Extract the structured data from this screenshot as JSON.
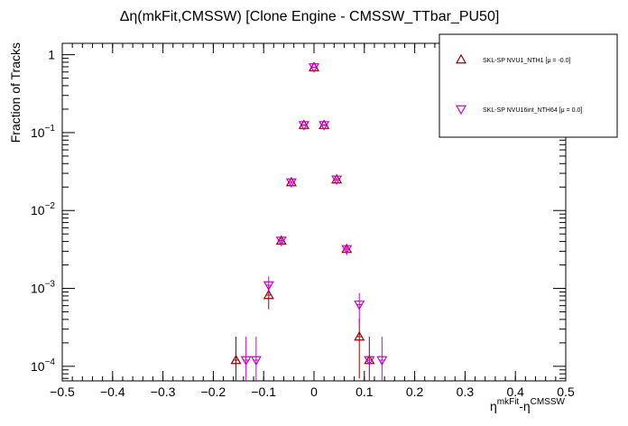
{
  "chart_data": {
    "type": "scatter",
    "title": "Δη(mkFit,CMSSW) [Clone Engine - CMSSW_TTbar_PU50]",
    "ylabel": "Fraction of Tracks",
    "xlabel_base": "η",
    "xlabel_sup1": "mkFit",
    "xlabel_mid": "-η",
    "xlabel_sup2": "CMSSW",
    "xlim": [
      -0.5,
      0.5
    ],
    "ylim": [
      6.5e-05,
      1.4
    ],
    "yscale": "log",
    "xticks": [
      -0.5,
      -0.4,
      -0.3,
      -0.2,
      -0.1,
      0,
      0.1,
      0.2,
      0.3,
      0.4,
      0.5
    ],
    "xtick_labels": [
      "−0.5",
      "−0.4",
      "−0.3",
      "−0.2",
      "−0.1",
      "0",
      "0.1",
      "0.2",
      "0.3",
      "0.4",
      "0.5"
    ],
    "yticks": [
      0.0001,
      0.001,
      0.01,
      0.1,
      1
    ],
    "ytick_base": [
      "10",
      "10",
      "10",
      "10",
      "1"
    ],
    "ytick_exp": [
      "−4",
      "−3",
      "−2",
      "−1",
      ""
    ],
    "legend_position": "top-right",
    "series": [
      {
        "name": "SKL-SP NVU1_NTH1 [μ = -0.0]",
        "color": "#990000",
        "marker": "triangle-up",
        "x": [
          -0.155,
          -0.09,
          -0.065,
          -0.045,
          -0.02,
          0,
          0.02,
          0.045,
          0.065,
          0.09,
          0.11
        ],
        "y": [
          0.00012,
          0.00082,
          0.0041,
          0.023,
          0.125,
          0.69,
          0.125,
          0.025,
          0.0032,
          0.00024,
          0.00012
        ],
        "yerr": [
          0.00012,
          0.00028,
          0.0006,
          0.0014,
          0.003,
          0.008,
          0.003,
          0.0015,
          0.0005,
          0.00017,
          0.00012
        ]
      },
      {
        "name": "SKL-SP NVU16int_NTH64 [μ =  0.0]",
        "color": "#cc00cc",
        "marker": "triangle-down",
        "x": [
          -0.135,
          -0.115,
          -0.09,
          -0.065,
          -0.045,
          -0.02,
          0,
          0.02,
          0.045,
          0.065,
          0.09,
          0.11,
          0.135
        ],
        "y": [
          0.00012,
          0.00012,
          0.0011,
          0.0041,
          0.023,
          0.125,
          0.69,
          0.125,
          0.025,
          0.0032,
          0.00062,
          0.00012,
          0.00012
        ],
        "yerr": [
          0.00012,
          0.00012,
          0.00033,
          0.0006,
          0.0014,
          0.003,
          0.008,
          0.003,
          0.0015,
          0.0005,
          0.00025,
          0.00012,
          0.00012
        ]
      }
    ]
  }
}
